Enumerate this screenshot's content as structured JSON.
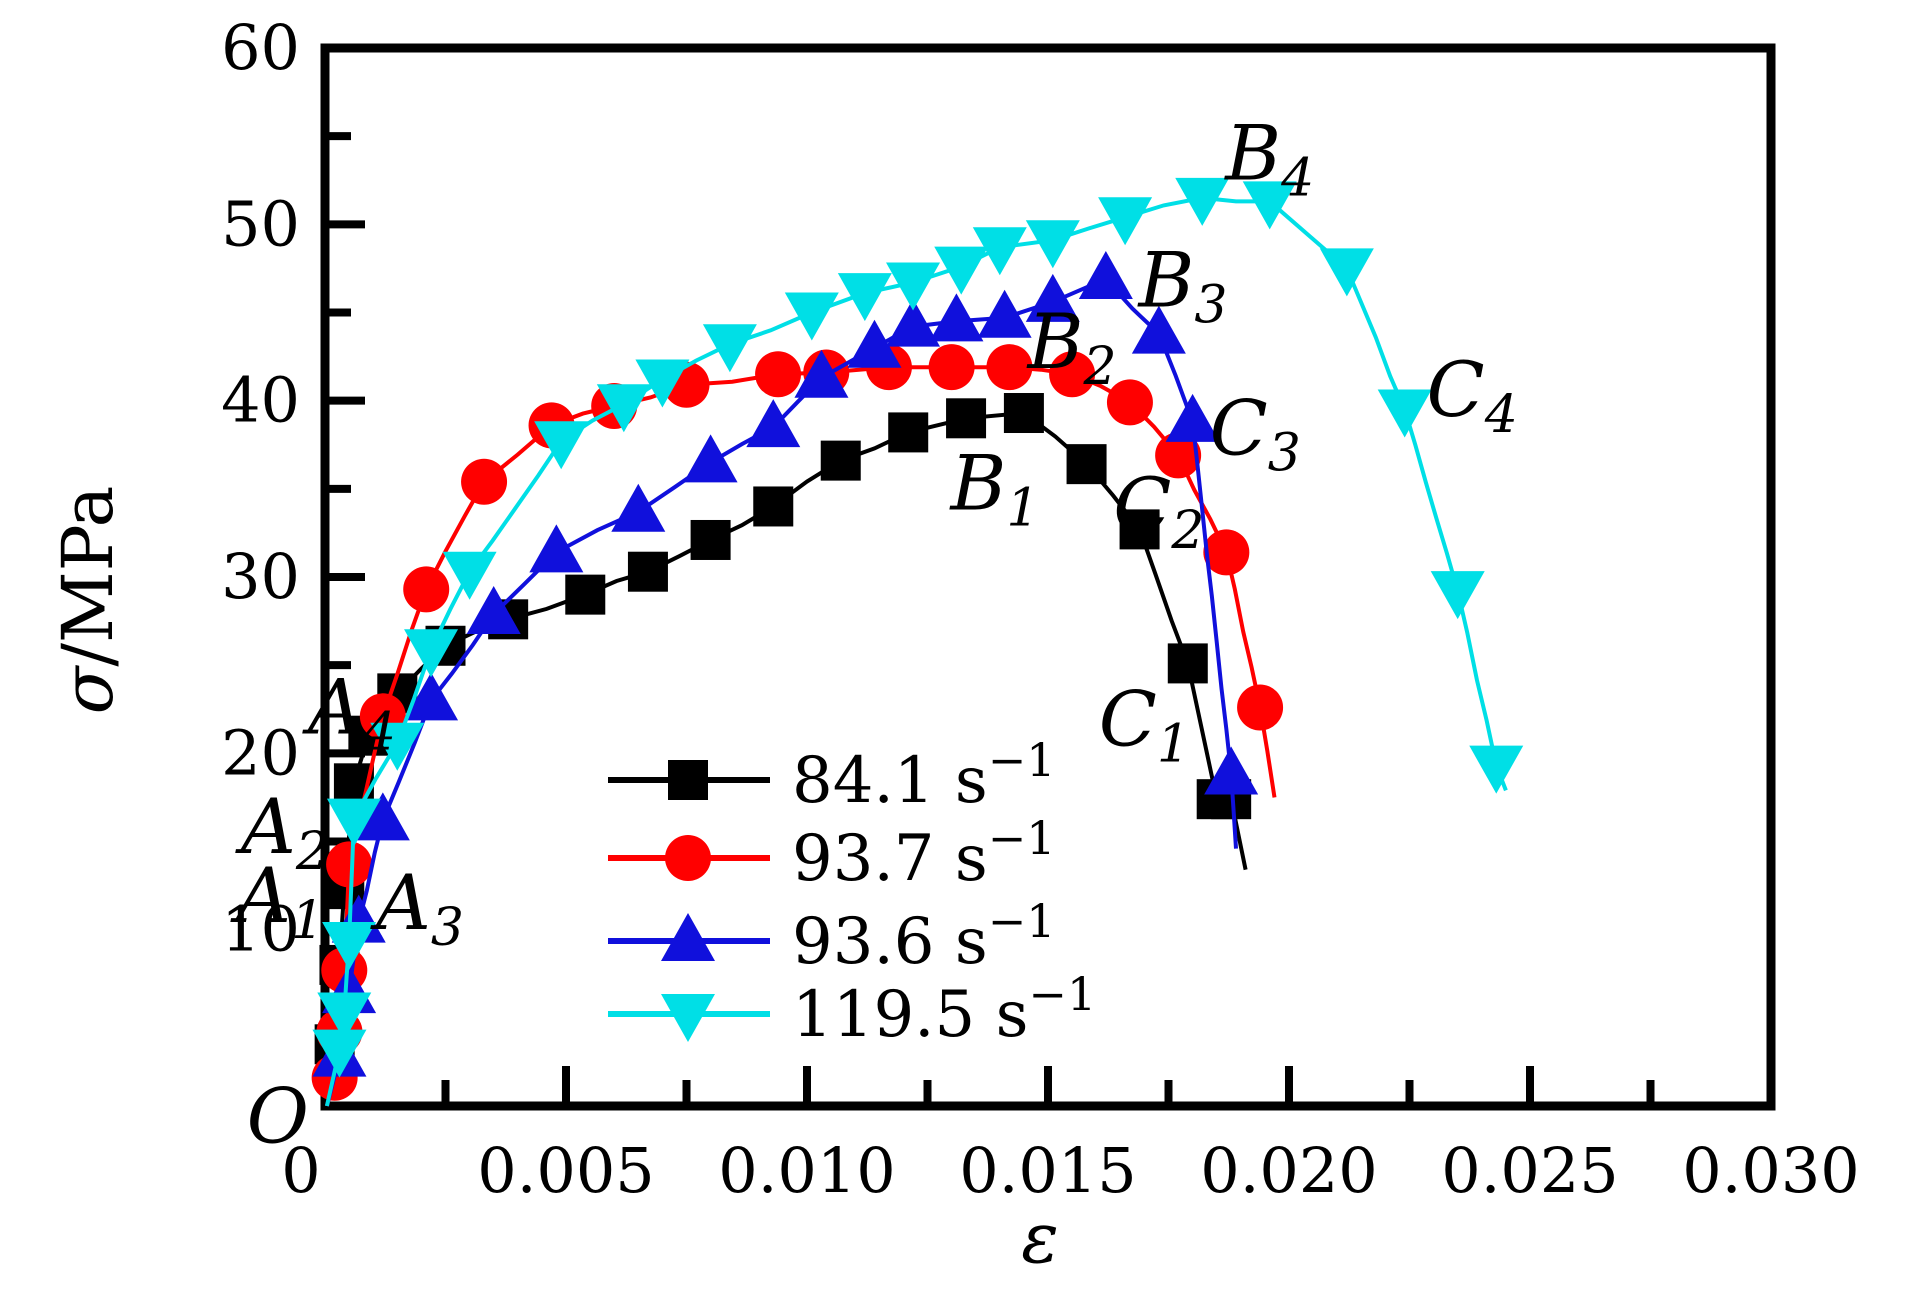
{
  "figure": {
    "kind": "scientific stress-strain plot",
    "background": "#ffffff",
    "axis_color": "#000000"
  },
  "chart_data": {
    "type": "line",
    "title": "",
    "xlabel": "ε",
    "ylabel_symbol": "σ",
    "ylabel_rest": "/MPa",
    "xlim": [
      0,
      0.03
    ],
    "ylim": [
      0,
      60
    ],
    "grid": false,
    "origin_label": "O",
    "x_ticks": [
      0,
      0.005,
      0.01,
      0.015,
      0.02,
      0.025,
      0.03
    ],
    "x_tick_labels": [
      "0",
      "0.005",
      "0.010",
      "0.015",
      "0.020",
      "0.025",
      "0.030"
    ],
    "x_minor_step": 0.0025,
    "y_ticks": [
      10,
      20,
      30,
      40,
      50,
      60
    ],
    "y_tick_labels": [
      "10",
      "20",
      "30",
      "40",
      "50",
      "60"
    ],
    "y_minor_step": 5,
    "legend_position": "inside lower-left",
    "series": [
      {
        "name": "84.1 s⁻¹",
        "color": "#000000",
        "marker": "square",
        "points": [
          [
            0.0002,
            3.5
          ],
          [
            0.0003,
            8.0
          ],
          [
            0.0004,
            12.3
          ],
          [
            0.0006,
            18.3
          ],
          [
            0.0009,
            21.0
          ],
          [
            0.0015,
            23.4
          ],
          [
            0.0025,
            26.1
          ],
          [
            0.0038,
            27.6
          ],
          [
            0.0054,
            29.0
          ],
          [
            0.0067,
            30.3
          ],
          [
            0.008,
            32.1
          ],
          [
            0.0093,
            34.0
          ],
          [
            0.0107,
            36.6
          ],
          [
            0.0121,
            38.2
          ],
          [
            0.0133,
            39.0
          ],
          [
            0.0145,
            39.3
          ],
          [
            0.0158,
            36.4
          ],
          [
            0.0169,
            32.7
          ],
          [
            0.0179,
            25.1
          ],
          [
            0.0185,
            17.4
          ],
          [
            0.0188,
            17.4
          ]
        ],
        "line_end": [
          0.0191,
          13.4
        ]
      },
      {
        "name": "93.7 s⁻¹",
        "color": "#ff0000",
        "marker": "circle",
        "points": [
          [
            0.0002,
            1.6
          ],
          [
            0.0003,
            4.2
          ],
          [
            0.0004,
            7.7
          ],
          [
            0.0005,
            13.7
          ],
          [
            0.0012,
            22.1
          ],
          [
            0.0021,
            29.3
          ],
          [
            0.0033,
            35.4
          ],
          [
            0.0047,
            38.6
          ],
          [
            0.006,
            39.7
          ],
          [
            0.0075,
            40.9
          ],
          [
            0.0094,
            41.5
          ],
          [
            0.0104,
            41.6
          ],
          [
            0.0117,
            41.9
          ],
          [
            0.013,
            41.9
          ],
          [
            0.0142,
            41.9
          ],
          [
            0.0155,
            41.5
          ],
          [
            0.0167,
            39.9
          ],
          [
            0.0177,
            36.9
          ],
          [
            0.0187,
            31.4
          ],
          [
            0.0194,
            22.6
          ]
        ],
        "line_end": [
          0.0197,
          17.5
        ]
      },
      {
        "name": "93.6 s⁻¹",
        "color": "#1010dc",
        "marker": "triangle-up",
        "points": [
          [
            0.0003,
            2.8
          ],
          [
            0.0005,
            6.4
          ],
          [
            0.0007,
            10.4
          ],
          [
            0.0012,
            16.2
          ],
          [
            0.0022,
            23.0
          ],
          [
            0.0035,
            27.9
          ],
          [
            0.0048,
            31.4
          ],
          [
            0.0065,
            33.7
          ],
          [
            0.008,
            36.5
          ],
          [
            0.0093,
            38.5
          ],
          [
            0.0103,
            41.3
          ],
          [
            0.0114,
            43.0
          ],
          [
            0.0122,
            44.2
          ],
          [
            0.0131,
            44.5
          ],
          [
            0.0141,
            44.7
          ],
          [
            0.0151,
            45.6
          ],
          [
            0.0162,
            46.9
          ],
          [
            0.0173,
            43.8
          ],
          [
            0.018,
            38.8
          ],
          [
            0.0188,
            18.8
          ]
        ],
        "line_end": [
          0.0189,
          14.6
        ]
      },
      {
        "name": "119.5 s⁻¹",
        "color": "#00dfe6",
        "marker": "triangle-down",
        "points": [
          [
            0.0003,
            3.2
          ],
          [
            0.0004,
            5.3
          ],
          [
            0.0005,
            9.3
          ],
          [
            0.0006,
            16.3
          ],
          [
            0.0015,
            20.6
          ],
          [
            0.0022,
            25.9
          ],
          [
            0.003,
            30.3
          ],
          [
            0.0049,
            37.7
          ],
          [
            0.0062,
            39.8
          ],
          [
            0.007,
            41.2
          ],
          [
            0.0084,
            43.2
          ],
          [
            0.0101,
            45.0
          ],
          [
            0.0112,
            46.1
          ],
          [
            0.0122,
            46.7
          ],
          [
            0.0132,
            47.6
          ],
          [
            0.014,
            48.7
          ],
          [
            0.0151,
            49.1
          ],
          [
            0.0166,
            50.4
          ],
          [
            0.0182,
            51.5
          ],
          [
            0.0196,
            51.3
          ],
          [
            0.0212,
            47.5
          ],
          [
            0.0224,
            39.5
          ],
          [
            0.0235,
            29.2
          ],
          [
            0.0243,
            19.3
          ]
        ],
        "line_end": [
          0.0245,
          17.9
        ]
      }
    ],
    "annotations": [
      {
        "text": "O",
        "sub": "",
        "eps": -0.00098,
        "sigma": -0.7
      },
      {
        "text": "A",
        "sub": "1",
        "eps": -0.00093,
        "sigma": 11.8
      },
      {
        "text": "A",
        "sub": "2",
        "eps": -0.00083,
        "sigma": 15.7
      },
      {
        "text": "A",
        "sub": "3",
        "eps": 0.00197,
        "sigma": 11.4
      },
      {
        "text": "A",
        "sub": "4",
        "eps": 0.00056,
        "sigma": 22.5
      },
      {
        "text": "B",
        "sub": "1",
        "eps": 0.0139,
        "sigma": 35.2
      },
      {
        "text": "B",
        "sub": "2",
        "eps": 0.0155,
        "sigma": 43.2
      },
      {
        "text": "B",
        "sub": "3",
        "eps": 0.0178,
        "sigma": 46.7
      },
      {
        "text": "B",
        "sub": "4",
        "eps": 0.0196,
        "sigma": 53.9
      },
      {
        "text": "C",
        "sub": "1",
        "eps": 0.017,
        "sigma": 21.8
      },
      {
        "text": "C",
        "sub": "2",
        "eps": 0.0173,
        "sigma": 33.9
      },
      {
        "text": "C",
        "sub": "3",
        "eps": 0.0193,
        "sigma": 38.3
      },
      {
        "text": "C",
        "sub": "4",
        "eps": 0.0238,
        "sigma": 40.5
      }
    ]
  }
}
